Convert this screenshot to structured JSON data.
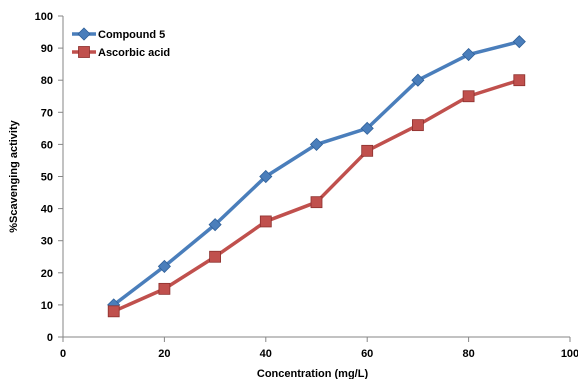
{
  "chart_data": {
    "type": "line",
    "title": "",
    "xlabel": "Concentration (mg/L)",
    "ylabel": "%Scavenging activity",
    "xlim": [
      0,
      100
    ],
    "ylim": [
      0,
      100
    ],
    "xticks": [
      0,
      20,
      40,
      60,
      80,
      100
    ],
    "yticks": [
      0,
      10,
      20,
      30,
      40,
      50,
      60,
      70,
      80,
      90,
      100
    ],
    "grid": false,
    "legend_position": "top-left",
    "x": [
      10,
      20,
      30,
      40,
      50,
      60,
      70,
      80,
      90
    ],
    "series": [
      {
        "name": "Compound 5",
        "color": "#4a7ebb",
        "marker": "diamond",
        "values": [
          10,
          22,
          35,
          50,
          60,
          65,
          80,
          88,
          92
        ]
      },
      {
        "name": "Ascorbic acid",
        "color": "#c0504d",
        "marker": "square",
        "values": [
          8,
          15,
          25,
          36,
          42,
          58,
          66,
          75,
          80
        ]
      }
    ]
  }
}
